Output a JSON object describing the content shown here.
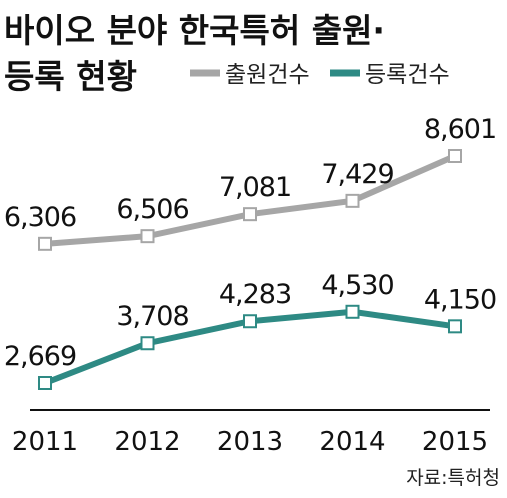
{
  "chart_data": {
    "type": "line",
    "title": [
      "바이오 분야 한국특허 출원·",
      "등록 현황"
    ],
    "categories": [
      "2011",
      "2012",
      "2013",
      "2014",
      "2015"
    ],
    "series": [
      {
        "name": "출원건수",
        "color": "#a6a6a6",
        "values": [
          6306,
          6506,
          7081,
          7429,
          8601
        ],
        "value_labels": [
          "6,306",
          "6,506",
          "7,081",
          "7,429",
          "8,601"
        ]
      },
      {
        "name": "등록건수",
        "color": "#2e8a84",
        "values": [
          2669,
          3708,
          4283,
          4530,
          4150
        ],
        "value_labels": [
          "2,669",
          "3,708",
          "4,283",
          "4,530",
          "4,150"
        ]
      }
    ],
    "source": "자료:특허청"
  }
}
